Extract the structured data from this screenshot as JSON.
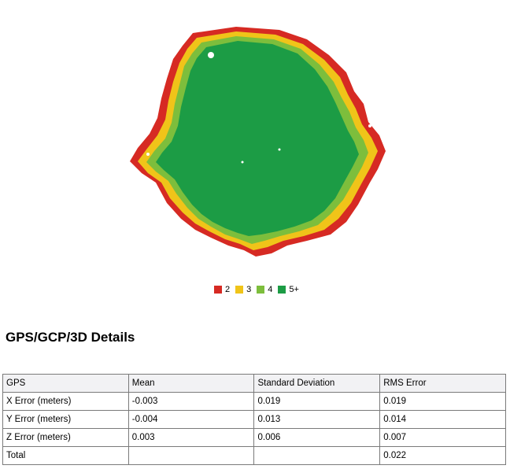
{
  "legend": [
    {
      "label": "2",
      "color": "#d62a23"
    },
    {
      "label": "3",
      "color": "#f0c419"
    },
    {
      "label": "4",
      "color": "#7dbe3c"
    },
    {
      "label": "5+",
      "color": "#1c9c45"
    }
  ],
  "section_title": "GPS/GCP/3D Details",
  "table": {
    "headers": [
      "GPS",
      "Mean",
      "Standard Deviation",
      "RMS Error"
    ],
    "rows": [
      [
        "X Error (meters)",
        "-0.003",
        "0.019",
        "0.019"
      ],
      [
        "Y Error (meters)",
        "-0.004",
        "0.013",
        "0.014"
      ],
      [
        "Z Error (meters)",
        "0.003",
        "0.006",
        "0.007"
      ],
      [
        "Total",
        "",
        "",
        "0.022"
      ]
    ]
  }
}
